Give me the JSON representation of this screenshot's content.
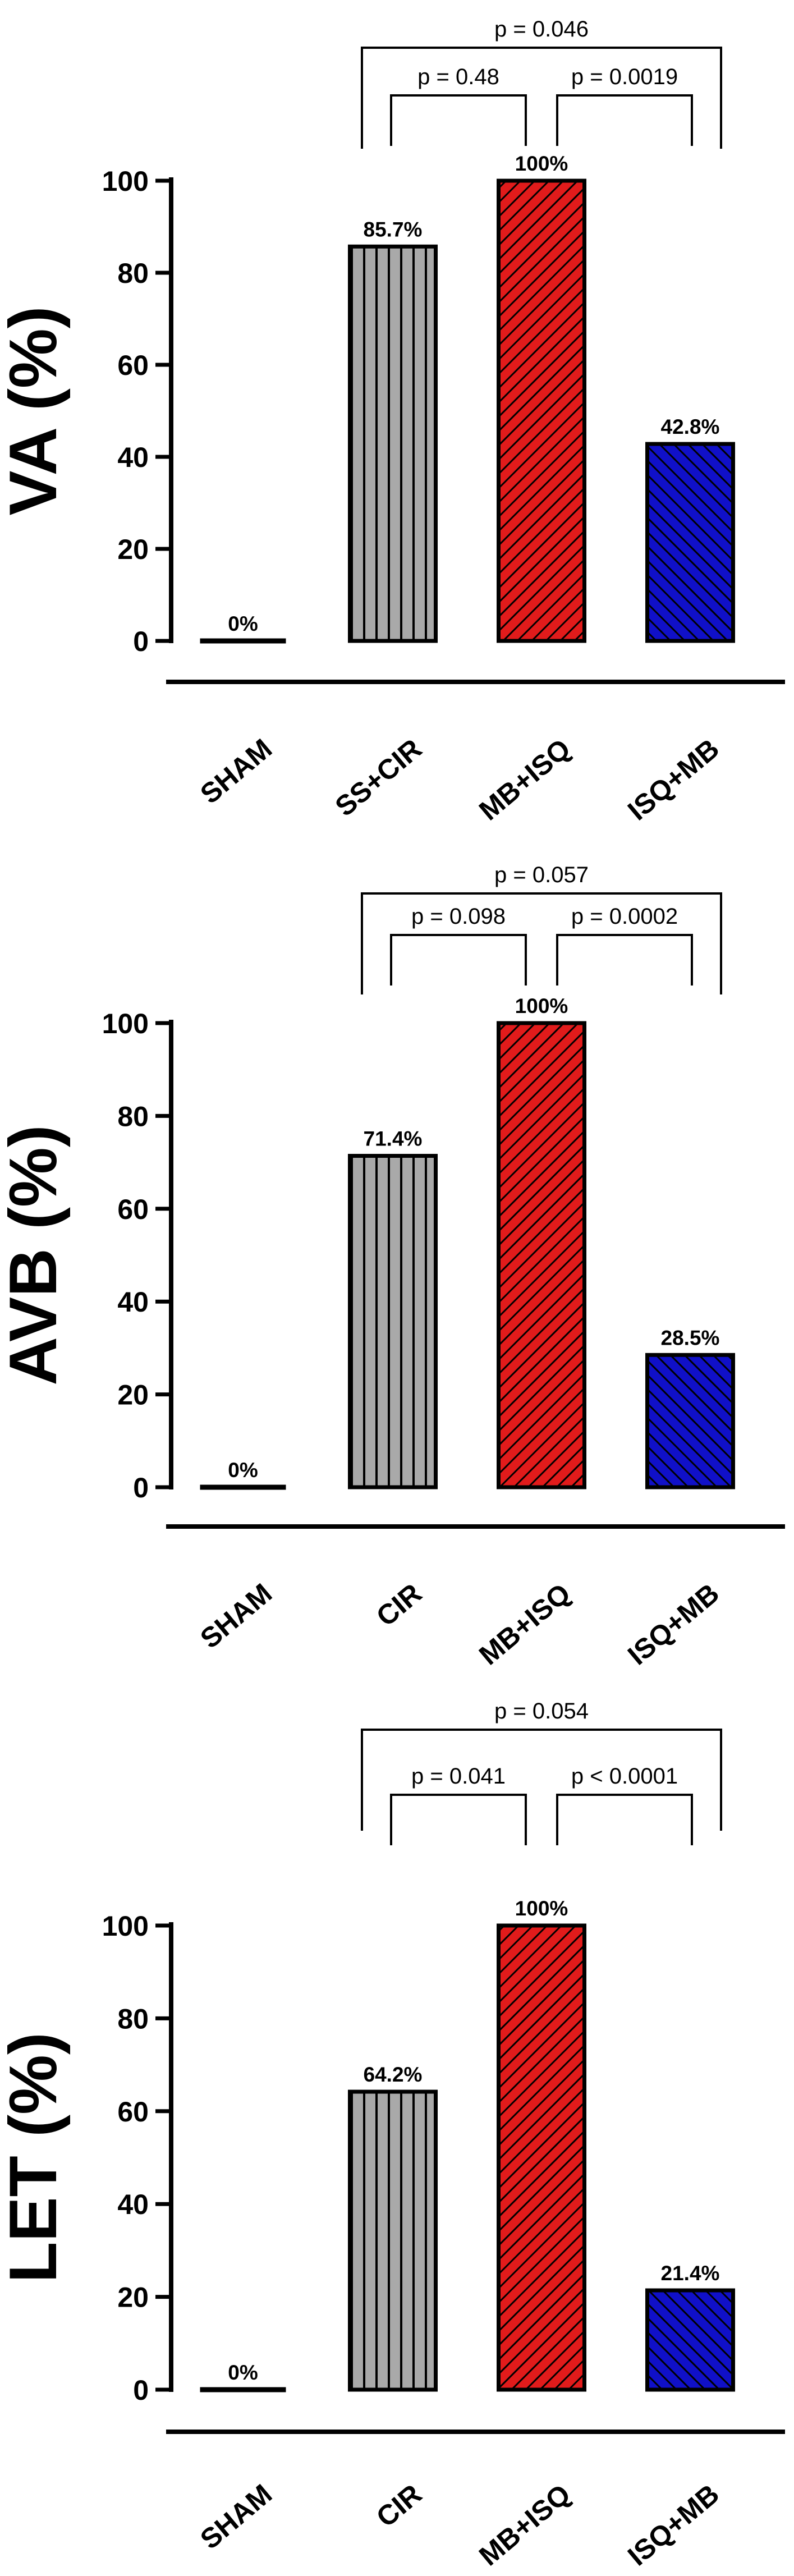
{
  "colors": {
    "bar_colors": [
      "#000000",
      "#a9a9a9",
      "#e11b1b",
      "#1010c8"
    ],
    "stroke": "#000000",
    "background": "#ffffff"
  },
  "chart_data": [
    {
      "type": "bar",
      "ylabel": "VA (%)",
      "ylim": [
        0,
        100
      ],
      "yticks": [
        0,
        20,
        40,
        60,
        80,
        100
      ],
      "categories": [
        "SHAM",
        "SS+CIR",
        "MB+ISQ",
        "ISQ+MB"
      ],
      "values": [
        0,
        85.7,
        100,
        42.8
      ],
      "data_labels": [
        "0%",
        "85.7%",
        "100%",
        "42.8%"
      ],
      "patterns": [
        "solid",
        "vertical",
        "diagonal",
        "diagonal"
      ],
      "comparisons": [
        {
          "from": 1,
          "to": 3,
          "label": "p = 0.046",
          "level": 2
        },
        {
          "from": 1,
          "to": 2,
          "label": "p = 0.48",
          "level": 1
        },
        {
          "from": 2,
          "to": 3,
          "label": "p = 0.0019",
          "level": 1
        }
      ]
    },
    {
      "type": "bar",
      "ylabel": "AVB (%)",
      "ylim": [
        0,
        100
      ],
      "yticks": [
        0,
        20,
        40,
        60,
        80,
        100
      ],
      "categories": [
        "SHAM",
        "CIR",
        "MB+ISQ",
        "ISQ+MB"
      ],
      "values": [
        0,
        71.4,
        100,
        28.5
      ],
      "data_labels": [
        "0%",
        "71.4%",
        "100%",
        "28.5%"
      ],
      "patterns": [
        "solid",
        "vertical",
        "diagonal",
        "diagonal"
      ],
      "comparisons": [
        {
          "from": 1,
          "to": 3,
          "label": "p = 0.057",
          "level": 2
        },
        {
          "from": 1,
          "to": 2,
          "label": "p = 0.098",
          "level": 1
        },
        {
          "from": 2,
          "to": 3,
          "label": "p = 0.0002",
          "level": 1
        }
      ]
    },
    {
      "type": "bar",
      "ylabel": "LET (%)",
      "ylim": [
        0,
        100
      ],
      "yticks": [
        0,
        20,
        40,
        60,
        80,
        100
      ],
      "categories": [
        "SHAM",
        "CIR",
        "MB+ISQ",
        "ISQ+MB"
      ],
      "values": [
        0,
        64.2,
        100,
        21.4
      ],
      "data_labels": [
        "0%",
        "64.2%",
        "100%",
        "21.4%"
      ],
      "patterns": [
        "solid",
        "vertical",
        "diagonal",
        "diagonal"
      ],
      "comparisons": [
        {
          "from": 1,
          "to": 3,
          "label": "p = 0.054",
          "level": 2
        },
        {
          "from": 1,
          "to": 2,
          "label": "p = 0.041",
          "level": 1
        },
        {
          "from": 2,
          "to": 3,
          "label": "p < 0.0001",
          "level": 1
        }
      ]
    }
  ]
}
